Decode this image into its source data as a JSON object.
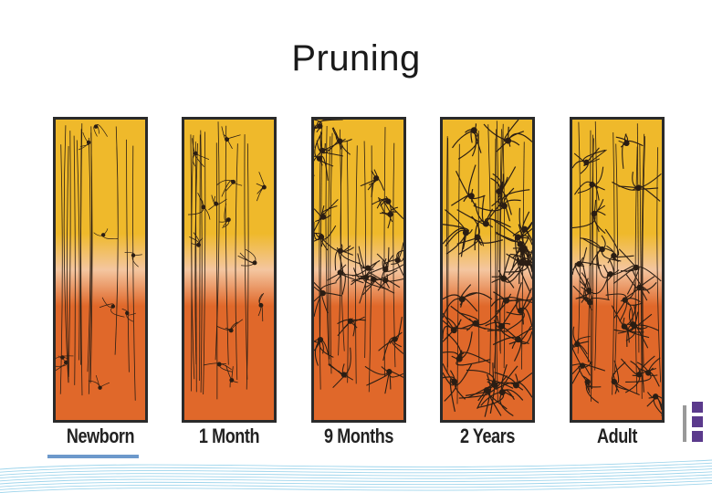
{
  "slide": {
    "title": "Pruning"
  },
  "panels": [
    {
      "label": "Newborn",
      "stage": "newborn",
      "density": 0.15
    },
    {
      "label": "1 Month",
      "stage": "1-month",
      "density": 0.3
    },
    {
      "label": "9 Months",
      "stage": "9-months",
      "density": 0.75
    },
    {
      "label": "2 Years",
      "stage": "2-years",
      "density": 1.0
    },
    {
      "label": "Adult",
      "stage": "adult",
      "density": 0.8
    }
  ],
  "colors": {
    "panel_top": "#efb92b",
    "panel_mid": "#f4c6a0",
    "panel_bottom": "#e0682a",
    "frame": "#2a2a2a",
    "neuron": "#2b1e14",
    "logo": "#5b3a8c",
    "wave": "#7fc7e6"
  }
}
